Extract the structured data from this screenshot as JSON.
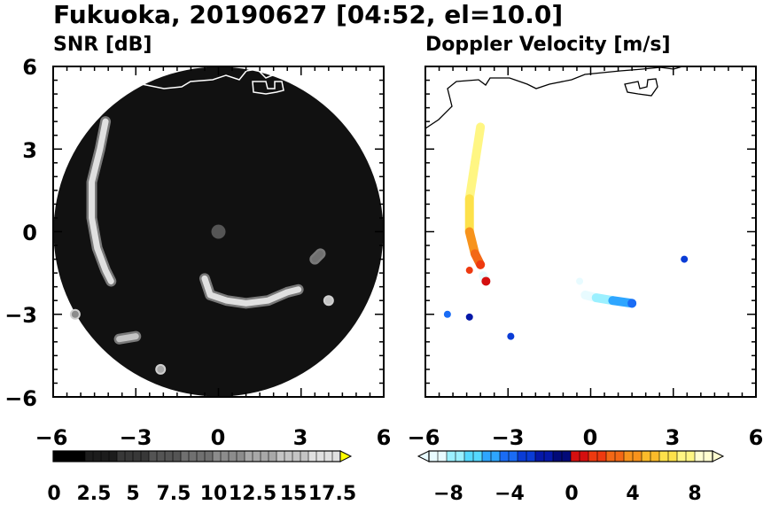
{
  "figure": {
    "title": "Fukuoka, 20190627 [04:52, el=10.0]"
  },
  "chart_data": [
    {
      "type": "heatmap",
      "title": "SNR [dB]",
      "xlim": [
        -6,
        6
      ],
      "ylim": [
        -6,
        6
      ],
      "x_ticks": [
        "−6",
        "−3",
        "0",
        "3",
        "6"
      ],
      "y_ticks": [
        "6",
        "3",
        "0",
        "−3",
        "−6"
      ],
      "scan_range": 6,
      "background": "#111111",
      "coastline_color": "#ffffff",
      "colorbar": {
        "labels": [
          "0",
          "2.5",
          "5",
          "7.5",
          "10",
          "12.5",
          "15",
          "17.5"
        ],
        "min": 0,
        "max": 17.5,
        "extend": "max",
        "colors": [
          "#000000",
          "#1c1c1c",
          "#383838",
          "#545454",
          "#707070",
          "#8c8c8c",
          "#a8a8a8",
          "#c4c4c4",
          "#e0e0e0",
          "#ffff00"
        ]
      },
      "echoes": [
        {
          "x": [
            -4.1,
            -4.3,
            -4.6,
            -4.6,
            -4.4,
            -4.1,
            -3.9
          ],
          "y": [
            4.0,
            3.0,
            1.8,
            0.5,
            -0.6,
            -1.4,
            -1.8
          ],
          "db": 17
        },
        {
          "x": [
            -0.5,
            -0.3,
            0.3,
            1.0,
            1.8,
            2.5,
            2.9
          ],
          "y": [
            -1.7,
            -2.3,
            -2.5,
            -2.6,
            -2.5,
            -2.2,
            -2.1
          ],
          "db": 17
        },
        {
          "x": [
            4.0
          ],
          "y": [
            -2.5
          ],
          "db": 15
        },
        {
          "x": [
            -3.6,
            -3.0
          ],
          "y": [
            -3.9,
            -3.8
          ],
          "db": 14
        },
        {
          "x": [
            -2.1
          ],
          "y": [
            -5.0
          ],
          "db": 12
        },
        {
          "x": [
            -5.2
          ],
          "y": [
            -3.0
          ],
          "db": 10
        },
        {
          "x": [
            3.5,
            3.7
          ],
          "y": [
            -1.0,
            -0.8
          ],
          "db": 9
        }
      ]
    },
    {
      "type": "heatmap",
      "title": "Doppler Velocity [m/s]",
      "xlim": [
        -6,
        6
      ],
      "ylim": [
        -6,
        6
      ],
      "x_ticks": [
        "−6",
        "−3",
        "0",
        "3",
        "6"
      ],
      "y_ticks": [
        "6",
        "3",
        "0",
        "−3",
        "−6"
      ],
      "coastline_color": "#000000",
      "colorbar": {
        "labels": [
          "−8",
          "−4",
          "0",
          "4",
          "8"
        ],
        "min": -10,
        "max": 10,
        "extend": "both",
        "colors": [
          "#e8fbff",
          "#9bf0ff",
          "#55d8ff",
          "#2ea6ff",
          "#1a6cf5",
          "#0a3cd6",
          "#0518a8",
          "#020a78",
          "#d40f0f",
          "#ee3a10",
          "#f36815",
          "#f7931c",
          "#fbbb2a",
          "#fde14a",
          "#fff683",
          "#fffdd0"
        ]
      },
      "echoes": [
        {
          "x": [
            -4.0,
            -4.2,
            -4.4,
            -4.4,
            -4.2,
            -4.0
          ],
          "y": [
            3.8,
            2.5,
            1.2,
            0.0,
            -0.8,
            -1.2
          ],
          "v": [
            8.5,
            8.0,
            7.0,
            4.5,
            3.0,
            2.0
          ]
        },
        {
          "x": [
            -3.9,
            -3.8
          ],
          "y": [
            -1.6,
            -1.8
          ],
          "v": [
            -9,
            1
          ]
        },
        {
          "x": [
            -4.4
          ],
          "y": [
            -1.4
          ],
          "v": [
            2
          ]
        },
        {
          "x": [
            -0.2,
            0.2,
            0.8,
            1.5
          ],
          "y": [
            -2.3,
            -2.4,
            -2.5,
            -2.6
          ],
          "v": [
            -9.5,
            -8,
            -6,
            -5
          ]
        },
        {
          "x": [
            -0.4
          ],
          "y": [
            -1.8
          ],
          "v": [
            -9.5
          ]
        },
        {
          "x": [
            -5.2
          ],
          "y": [
            -3.0
          ],
          "v": [
            -5
          ]
        },
        {
          "x": [
            -2.9
          ],
          "y": [
            -3.8
          ],
          "v": [
            -3
          ]
        },
        {
          "x": [
            -4.4
          ],
          "y": [
            -3.1
          ],
          "v": [
            -2
          ]
        },
        {
          "x": [
            3.4
          ],
          "y": [
            -1.0
          ],
          "v": [
            -3
          ]
        }
      ]
    }
  ]
}
